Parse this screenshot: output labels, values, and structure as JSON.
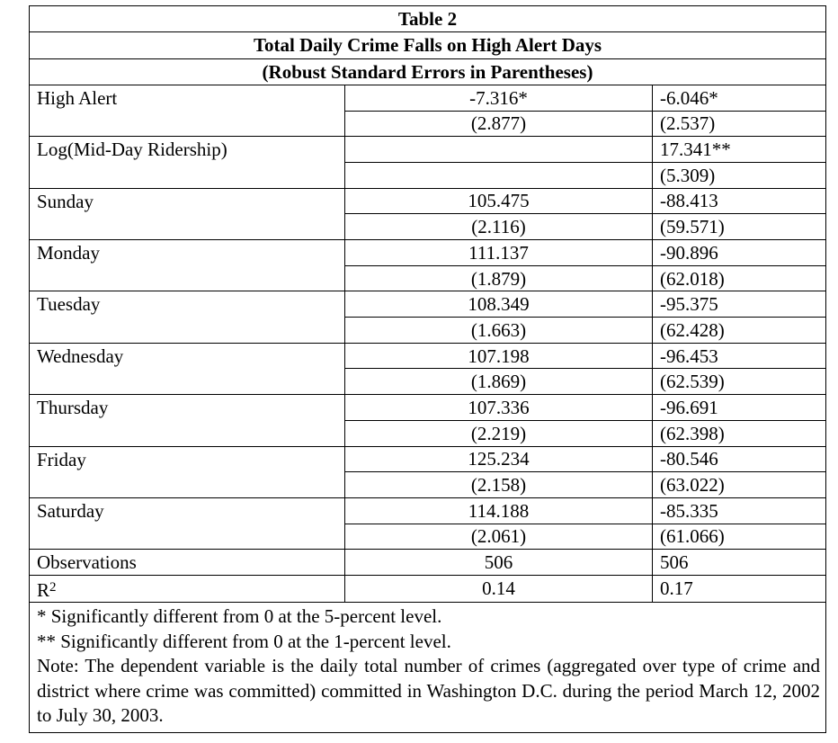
{
  "table": {
    "title_lines": [
      "Table 2",
      "Total Daily Crime Falls on High Alert Days",
      "(Robust Standard Errors in Parentheses)"
    ],
    "rows": [
      {
        "label": "High Alert",
        "col1": "-7.316*",
        "col2": "-6.046*",
        "se1": "(2.877)",
        "se2": "(2.537)"
      },
      {
        "label": "Log(Mid-Day Ridership)",
        "col1": "",
        "col2": "17.341**",
        "se1": "",
        "se2": "(5.309)"
      },
      {
        "label": "Sunday",
        "col1": "105.475",
        "col2": "-88.413",
        "se1": "(2.116)",
        "se2": "(59.571)"
      },
      {
        "label": "Monday",
        "col1": "111.137",
        "col2": "-90.896",
        "se1": "(1.879)",
        "se2": "(62.018)"
      },
      {
        "label": "Tuesday",
        "col1": "108.349",
        "col2": "-95.375",
        "se1": "(1.663)",
        "se2": "(62.428)"
      },
      {
        "label": "Wednesday",
        "col1": "107.198",
        "col2": "-96.453",
        "se1": "(1.869)",
        "se2": "(62.539)"
      },
      {
        "label": "Thursday",
        "col1": "107.336",
        "col2": "-96.691",
        "se1": "(2.219)",
        "se2": "(62.398)"
      },
      {
        "label": "Friday",
        "col1": "125.234",
        "col2": "-80.546",
        "se1": "(2.158)",
        "se2": "(63.022)"
      },
      {
        "label": "Saturday",
        "col1": "114.188",
        "col2": "-85.335",
        "se1": "(2.061)",
        "se2": "(61.066)"
      }
    ],
    "observations": {
      "label": "Observations",
      "col1": "506",
      "col2": "506"
    },
    "r2": {
      "label_base": "R",
      "label_sup": "2",
      "col1": "0.14",
      "col2": "0.17"
    },
    "notes": [
      "* Significantly different from 0 at the 5-percent level.",
      "** Significantly different from 0 at the 1-percent level.",
      "Note: The dependent variable is the daily total number of crimes (aggregated over type of crime and district where crime was committed) committed in Washington D.C. during the period March 12, 2002 to July 30, 2003."
    ]
  }
}
